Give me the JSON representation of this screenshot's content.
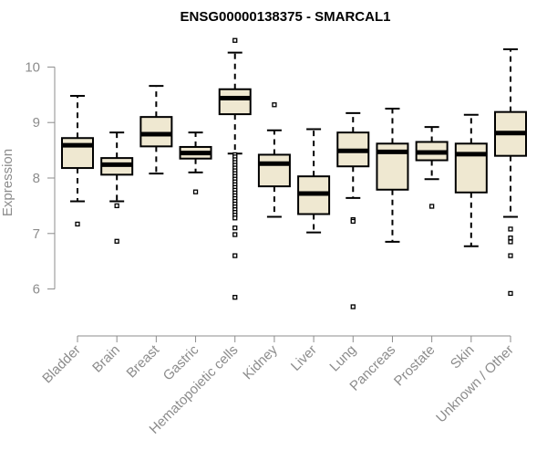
{
  "chart_data": {
    "type": "box",
    "title": "ENSG00000138375 - SMARCAL1",
    "xlabel": "",
    "ylabel": "Expression",
    "ylim": [
      5.45,
      10.55
    ],
    "yticks": [
      6,
      7,
      8,
      9,
      10
    ],
    "grid": false,
    "legend": "none",
    "box_fill": "#efe8d1",
    "box_stroke": "#000000",
    "axis_color": "#8c8c8c",
    "categories": [
      "Bladder",
      "Brain",
      "Breast",
      "Gastric",
      "Hematopoietic cells",
      "Kidney",
      "Liver",
      "Lung",
      "Pancreas",
      "Prostate",
      "Skin",
      "Unknown / Other"
    ],
    "boxes": [
      {
        "q1": 8.18,
        "median": 8.59,
        "q3": 8.72,
        "whisker_low": 7.58,
        "whisker_high": 9.48,
        "outliers": [
          7.17
        ]
      },
      {
        "q1": 8.06,
        "median": 8.24,
        "q3": 8.36,
        "whisker_low": 7.58,
        "whisker_high": 8.82,
        "outliers": [
          7.5,
          6.86
        ]
      },
      {
        "q1": 8.57,
        "median": 8.79,
        "q3": 9.1,
        "whisker_low": 8.08,
        "whisker_high": 9.66,
        "outliers": []
      },
      {
        "q1": 8.35,
        "median": 8.45,
        "q3": 8.56,
        "whisker_low": 8.1,
        "whisker_high": 8.82,
        "outliers": [
          7.75
        ]
      },
      {
        "q1": 9.15,
        "median": 9.44,
        "q3": 9.6,
        "whisker_low": 8.44,
        "whisker_high": 10.26,
        "outliers": [
          10.48,
          8.42,
          8.38,
          8.33,
          8.28,
          8.23,
          8.18,
          8.13,
          8.08,
          8.03,
          7.98,
          7.93,
          7.88,
          7.83,
          7.78,
          7.73,
          7.68,
          7.63,
          7.58,
          7.53,
          7.48,
          7.43,
          7.38,
          7.33,
          7.28,
          7.1,
          6.98,
          6.6,
          5.85
        ]
      },
      {
        "q1": 7.85,
        "median": 8.26,
        "q3": 8.42,
        "whisker_low": 7.3,
        "whisker_high": 8.86,
        "outliers": [
          9.32
        ]
      },
      {
        "q1": 7.35,
        "median": 7.72,
        "q3": 8.03,
        "whisker_low": 7.02,
        "whisker_high": 8.88,
        "outliers": []
      },
      {
        "q1": 8.21,
        "median": 8.49,
        "q3": 8.82,
        "whisker_low": 7.64,
        "whisker_high": 9.17,
        "outliers": [
          7.25,
          7.22,
          5.68
        ]
      },
      {
        "q1": 7.79,
        "median": 8.47,
        "q3": 8.62,
        "whisker_low": 6.85,
        "whisker_high": 9.25,
        "outliers": []
      },
      {
        "q1": 8.32,
        "median": 8.46,
        "q3": 8.65,
        "whisker_low": 7.98,
        "whisker_high": 8.92,
        "outliers": [
          7.49
        ]
      },
      {
        "q1": 7.74,
        "median": 8.43,
        "q3": 8.62,
        "whisker_low": 6.77,
        "whisker_high": 9.14,
        "outliers": []
      },
      {
        "q1": 8.4,
        "median": 8.81,
        "q3": 9.19,
        "whisker_low": 7.3,
        "whisker_high": 10.32,
        "outliers": [
          7.08,
          6.92,
          6.85,
          6.6,
          5.92
        ]
      }
    ]
  }
}
